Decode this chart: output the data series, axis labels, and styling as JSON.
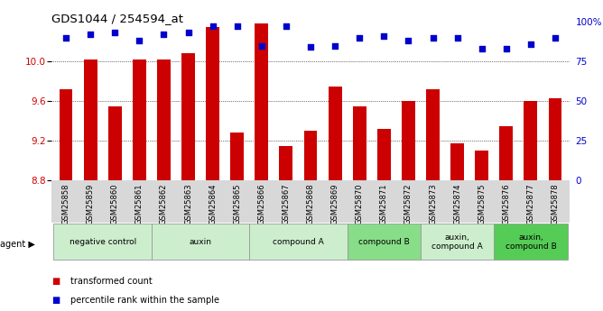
{
  "title": "GDS1044 / 254594_at",
  "samples": [
    "GSM25858",
    "GSM25859",
    "GSM25860",
    "GSM25861",
    "GSM25862",
    "GSM25863",
    "GSM25864",
    "GSM25865",
    "GSM25866",
    "GSM25867",
    "GSM25868",
    "GSM25869",
    "GSM25870",
    "GSM25871",
    "GSM25872",
    "GSM25873",
    "GSM25874",
    "GSM25875",
    "GSM25876",
    "GSM25877",
    "GSM25878"
  ],
  "bar_values": [
    9.72,
    10.02,
    9.55,
    10.02,
    10.02,
    10.08,
    10.35,
    9.28,
    10.38,
    9.15,
    9.3,
    9.75,
    9.55,
    9.32,
    9.6,
    9.72,
    9.17,
    9.1,
    9.35,
    9.6,
    9.63
  ],
  "dot_values": [
    90,
    92,
    93,
    88,
    92,
    93,
    97,
    97,
    85,
    97,
    84,
    85,
    90,
    91,
    88,
    90,
    90,
    83,
    83,
    86,
    90
  ],
  "bar_color": "#cc0000",
  "dot_color": "#0000cc",
  "ylim_left": [
    8.8,
    10.4
  ],
  "ylim_right": [
    0,
    100
  ],
  "yticks_left": [
    8.8,
    9.2,
    9.6,
    10.0
  ],
  "yticks_right": [
    0,
    25,
    50,
    75,
    100
  ],
  "ytick_labels_right": [
    "0",
    "25",
    "50",
    "75",
    "100%"
  ],
  "groups": [
    {
      "label": "negative control",
      "start": 0,
      "end": 3,
      "color": "#cceecc"
    },
    {
      "label": "auxin",
      "start": 4,
      "end": 7,
      "color": "#cceecc"
    },
    {
      "label": "compound A",
      "start": 8,
      "end": 11,
      "color": "#cceecc"
    },
    {
      "label": "compound B",
      "start": 12,
      "end": 14,
      "color": "#88dd88"
    },
    {
      "label": "auxin,\ncompound A",
      "start": 15,
      "end": 17,
      "color": "#cceecc"
    },
    {
      "label": "auxin,\ncompound B",
      "start": 18,
      "end": 20,
      "color": "#55cc55"
    }
  ],
  "agent_label": "agent ▶",
  "legend_bar": "transformed count",
  "legend_dot": "percentile rank within the sample",
  "background_color": "#ffffff",
  "plot_bg_color": "#ffffff",
  "grid_color": "#000000",
  "tick_label_color_left": "#cc0000",
  "tick_label_color_right": "#0000cc",
  "bar_width": 0.55,
  "bar_bottom": 8.8
}
